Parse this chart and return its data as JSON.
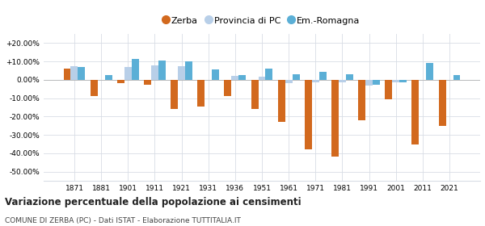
{
  "years": [
    1871,
    1881,
    1901,
    1911,
    1921,
    1931,
    1936,
    1951,
    1961,
    1971,
    1981,
    1991,
    2001,
    2011,
    2021
  ],
  "zerba": [
    6.0,
    -9.0,
    -2.0,
    -2.5,
    -16.0,
    -14.5,
    -9.0,
    -16.0,
    -23.0,
    -38.0,
    -42.0,
    -22.0,
    -10.5,
    -35.0,
    -25.0
  ],
  "provincia": [
    7.5,
    0.0,
    7.0,
    8.0,
    7.5,
    0.0,
    2.0,
    1.5,
    -2.0,
    -1.5,
    -1.5,
    -3.0,
    -1.5,
    0.0,
    0.0
  ],
  "emromagna": [
    7.0,
    2.5,
    11.5,
    10.5,
    10.0,
    5.5,
    2.5,
    6.0,
    3.0,
    4.5,
    3.0,
    -2.5,
    -1.5,
    9.0,
    2.5
  ],
  "zerba_color": "#d2691e",
  "provincia_color": "#b8cfe8",
  "emromagna_color": "#5bafd6",
  "title": "Variazione percentuale della popolazione ai censimenti",
  "subtitle": "COMUNE DI ZERBA (PC) - Dati ISTAT - Elaborazione TUTTITALIA.IT",
  "ylim": [
    -55,
    25
  ],
  "yticks": [
    -50,
    -40,
    -30,
    -20,
    -10,
    0,
    10,
    20
  ],
  "ytick_labels": [
    "-50.00%",
    "-40.00%",
    "-30.00%",
    "-20.00%",
    "-10.00%",
    "0.00%",
    "+10.00%",
    "+20.00%"
  ],
  "legend_labels": [
    "Zerba",
    "Provincia di PC",
    "Em.-Romagna"
  ],
  "background_color": "#ffffff",
  "grid_color": "#d8dde5",
  "bar_width": 0.27
}
